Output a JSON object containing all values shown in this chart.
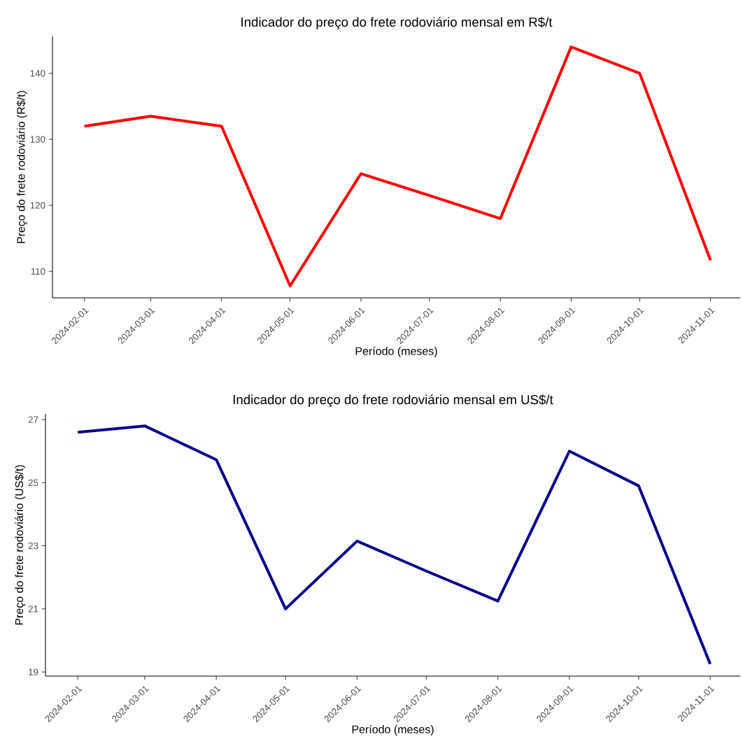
{
  "chart_data": [
    {
      "type": "line",
      "title": "Indicador do preço do frete rodoviário mensal em R$/t",
      "xlabel": "Período (meses)",
      "ylabel": "Preço do frete rodoviário (R$/t)",
      "x": [
        "2024-02-01",
        "2024-03-01",
        "2024-04-01",
        "2024-05-01",
        "2024-06-01",
        "2024-07-01",
        "2024-08-01",
        "2024-09-01",
        "2024-10-01",
        "2024-11-01"
      ],
      "series": [
        {
          "color": "#ff0000",
          "values": [
            132,
            133.5,
            132,
            107.8,
            124.8,
            121.5,
            118,
            144,
            140,
            111.7
          ]
        }
      ],
      "xlim": [
        "2024-01-18",
        "2024-11-14"
      ],
      "ylim": [
        106,
        145.6
      ],
      "yticks": [
        110,
        120,
        130,
        140
      ],
      "xticks": [
        "2024-02-01",
        "2024-03-01",
        "2024-04-01",
        "2024-05-01",
        "2024-06-01",
        "2024-07-01",
        "2024-08-01",
        "2024-09-01",
        "2024-10-01",
        "2024-11-01"
      ]
    },
    {
      "type": "line",
      "title": "Indicador do preço do frete rodoviário mensal em US$/t",
      "xlabel": "Período (meses)",
      "ylabel": "Preço do frete rodoviário (US$/t)",
      "x": [
        "2024-02-01",
        "2024-03-01",
        "2024-04-01",
        "2024-05-01",
        "2024-06-01",
        "2024-07-01",
        "2024-08-01",
        "2024-09-01",
        "2024-10-01",
        "2024-11-01"
      ],
      "series": [
        {
          "color": "#00008b",
          "values": [
            26.6,
            26.8,
            25.73,
            21.0,
            23.15,
            22.2,
            21.25,
            26.0,
            24.9,
            19.25
          ]
        }
      ],
      "xlim": [
        "2024-01-18",
        "2024-11-14"
      ],
      "ylim": [
        18.87,
        27.18
      ],
      "yticks": [
        19,
        21,
        23,
        25,
        27
      ],
      "xticks": [
        "2024-02-01",
        "2024-03-01",
        "2024-04-01",
        "2024-05-01",
        "2024-06-01",
        "2024-07-01",
        "2024-08-01",
        "2024-09-01",
        "2024-10-01",
        "2024-11-01"
      ]
    }
  ]
}
